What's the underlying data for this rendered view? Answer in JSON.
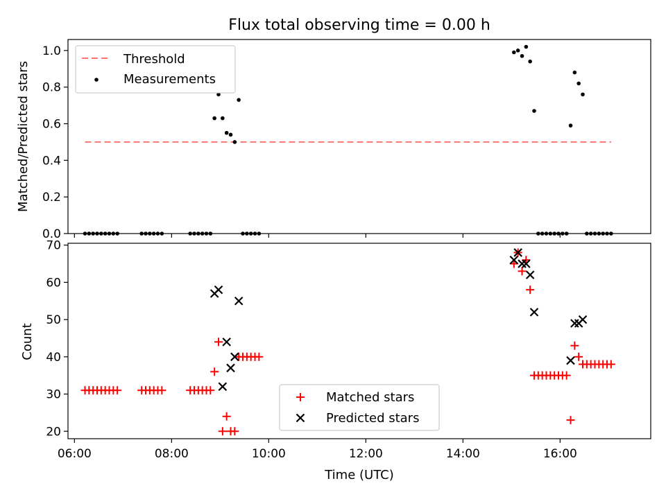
{
  "title": "Flux total observing time = 0.00 h",
  "colors": {
    "threshold": "#ff0000",
    "measurements": "#000000",
    "matched": "#ff0000",
    "predicted": "#000000"
  },
  "chart_data": [
    {
      "type": "scatter",
      "panel": "top",
      "ylabel": "Matched/Predicted stars",
      "ylim": [
        0.0,
        1.06
      ],
      "yticks": [
        0.0,
        0.2,
        0.4,
        0.6,
        0.8,
        1.0
      ],
      "ytick_labels": [
        "0.0",
        "0.2",
        "0.4",
        "0.6",
        "0.8",
        "1.0"
      ],
      "legend": {
        "placement": "top-left",
        "entries": [
          "Threshold",
          "Measurements"
        ]
      },
      "threshold": {
        "name": "Threshold",
        "value": 0.5,
        "x_start": "06:13",
        "x_end": "17:03",
        "style": "dashed"
      },
      "series": [
        {
          "name": "Measurements",
          "x": [
            "06:13",
            "06:18",
            "06:23",
            "06:28",
            "06:33",
            "06:38",
            "06:43",
            "06:48",
            "06:53",
            "07:23",
            "07:28",
            "07:33",
            "07:38",
            "07:43",
            "07:48",
            "08:23",
            "08:28",
            "08:33",
            "08:38",
            "08:43",
            "08:48",
            "08:53",
            "08:58",
            "09:03",
            "09:08",
            "09:13",
            "09:18",
            "09:23",
            "09:28",
            "09:33",
            "09:38",
            "09:43",
            "09:48",
            "15:03",
            "15:08",
            "15:13",
            "15:18",
            "15:23",
            "15:28",
            "15:33",
            "15:38",
            "15:43",
            "15:48",
            "15:53",
            "15:58",
            "16:03",
            "16:08",
            "16:13",
            "16:18",
            "16:23",
            "16:28",
            "16:33",
            "16:38",
            "16:43",
            "16:48",
            "16:53",
            "16:58",
            "17:03"
          ],
          "y": [
            0,
            0,
            0,
            0,
            0,
            0,
            0,
            0,
            0,
            0,
            0,
            0,
            0,
            0,
            0,
            0,
            0,
            0,
            0,
            0,
            0,
            0.63,
            0.76,
            0.63,
            0.55,
            0.54,
            0.5,
            0.73,
            0,
            0,
            0,
            0,
            0,
            0.99,
            1.0,
            0.97,
            1.02,
            0.94,
            0.67,
            0,
            0,
            0,
            0,
            0,
            0,
            0,
            0,
            0.59,
            0.88,
            0.82,
            0.76,
            0,
            0,
            0,
            0,
            0,
            0,
            0
          ]
        }
      ]
    },
    {
      "type": "scatter",
      "panel": "bottom",
      "xlabel": "Time (UTC)",
      "ylabel": "Count",
      "xlim": [
        "05:52",
        "17:52"
      ],
      "ylim": [
        18,
        70.5
      ],
      "xticks": [
        "06:00",
        "08:00",
        "10:00",
        "12:00",
        "14:00",
        "16:00"
      ],
      "yticks": [
        20,
        30,
        40,
        50,
        60,
        70
      ],
      "ytick_labels": [
        "20",
        "30",
        "40",
        "50",
        "60",
        "70"
      ],
      "legend": {
        "placement": "lower-center",
        "entries": [
          "Matched stars",
          "Predicted stars"
        ]
      },
      "series": [
        {
          "name": "Matched stars",
          "marker": "+",
          "x": [
            "06:13",
            "06:18",
            "06:23",
            "06:28",
            "06:33",
            "06:38",
            "06:43",
            "06:48",
            "06:53",
            "07:23",
            "07:28",
            "07:33",
            "07:38",
            "07:43",
            "07:48",
            "08:23",
            "08:28",
            "08:33",
            "08:38",
            "08:43",
            "08:48",
            "08:53",
            "08:58",
            "09:03",
            "09:08",
            "09:13",
            "09:18",
            "09:23",
            "09:28",
            "09:33",
            "09:38",
            "09:43",
            "09:48",
            "15:03",
            "15:08",
            "15:13",
            "15:18",
            "15:23",
            "15:28",
            "15:33",
            "15:38",
            "15:43",
            "15:48",
            "15:53",
            "15:58",
            "16:03",
            "16:08",
            "16:13",
            "16:18",
            "16:23",
            "16:28",
            "16:33",
            "16:38",
            "16:43",
            "16:48",
            "16:53",
            "16:58",
            "17:03"
          ],
          "y": [
            31,
            31,
            31,
            31,
            31,
            31,
            31,
            31,
            31,
            31,
            31,
            31,
            31,
            31,
            31,
            31,
            31,
            31,
            31,
            31,
            31,
            36,
            44,
            20,
            24,
            20,
            20,
            40,
            40,
            40,
            40,
            40,
            40,
            65,
            68,
            63,
            66,
            58,
            35,
            35,
            35,
            35,
            35,
            35,
            35,
            35,
            35,
            23,
            43,
            40,
            38,
            38,
            38,
            38,
            38,
            38,
            38,
            38
          ]
        },
        {
          "name": "Predicted stars",
          "marker": "x",
          "x": [
            "08:53",
            "08:58",
            "09:03",
            "09:08",
            "09:13",
            "09:18",
            "09:23",
            "15:03",
            "15:08",
            "15:13",
            "15:18",
            "15:23",
            "15:28",
            "16:13",
            "16:18",
            "16:23",
            "16:28"
          ],
          "y": [
            57,
            58,
            32,
            44,
            37,
            40,
            55,
            66,
            68,
            65,
            65,
            62,
            52,
            39,
            49,
            49,
            50
          ]
        }
      ]
    }
  ]
}
